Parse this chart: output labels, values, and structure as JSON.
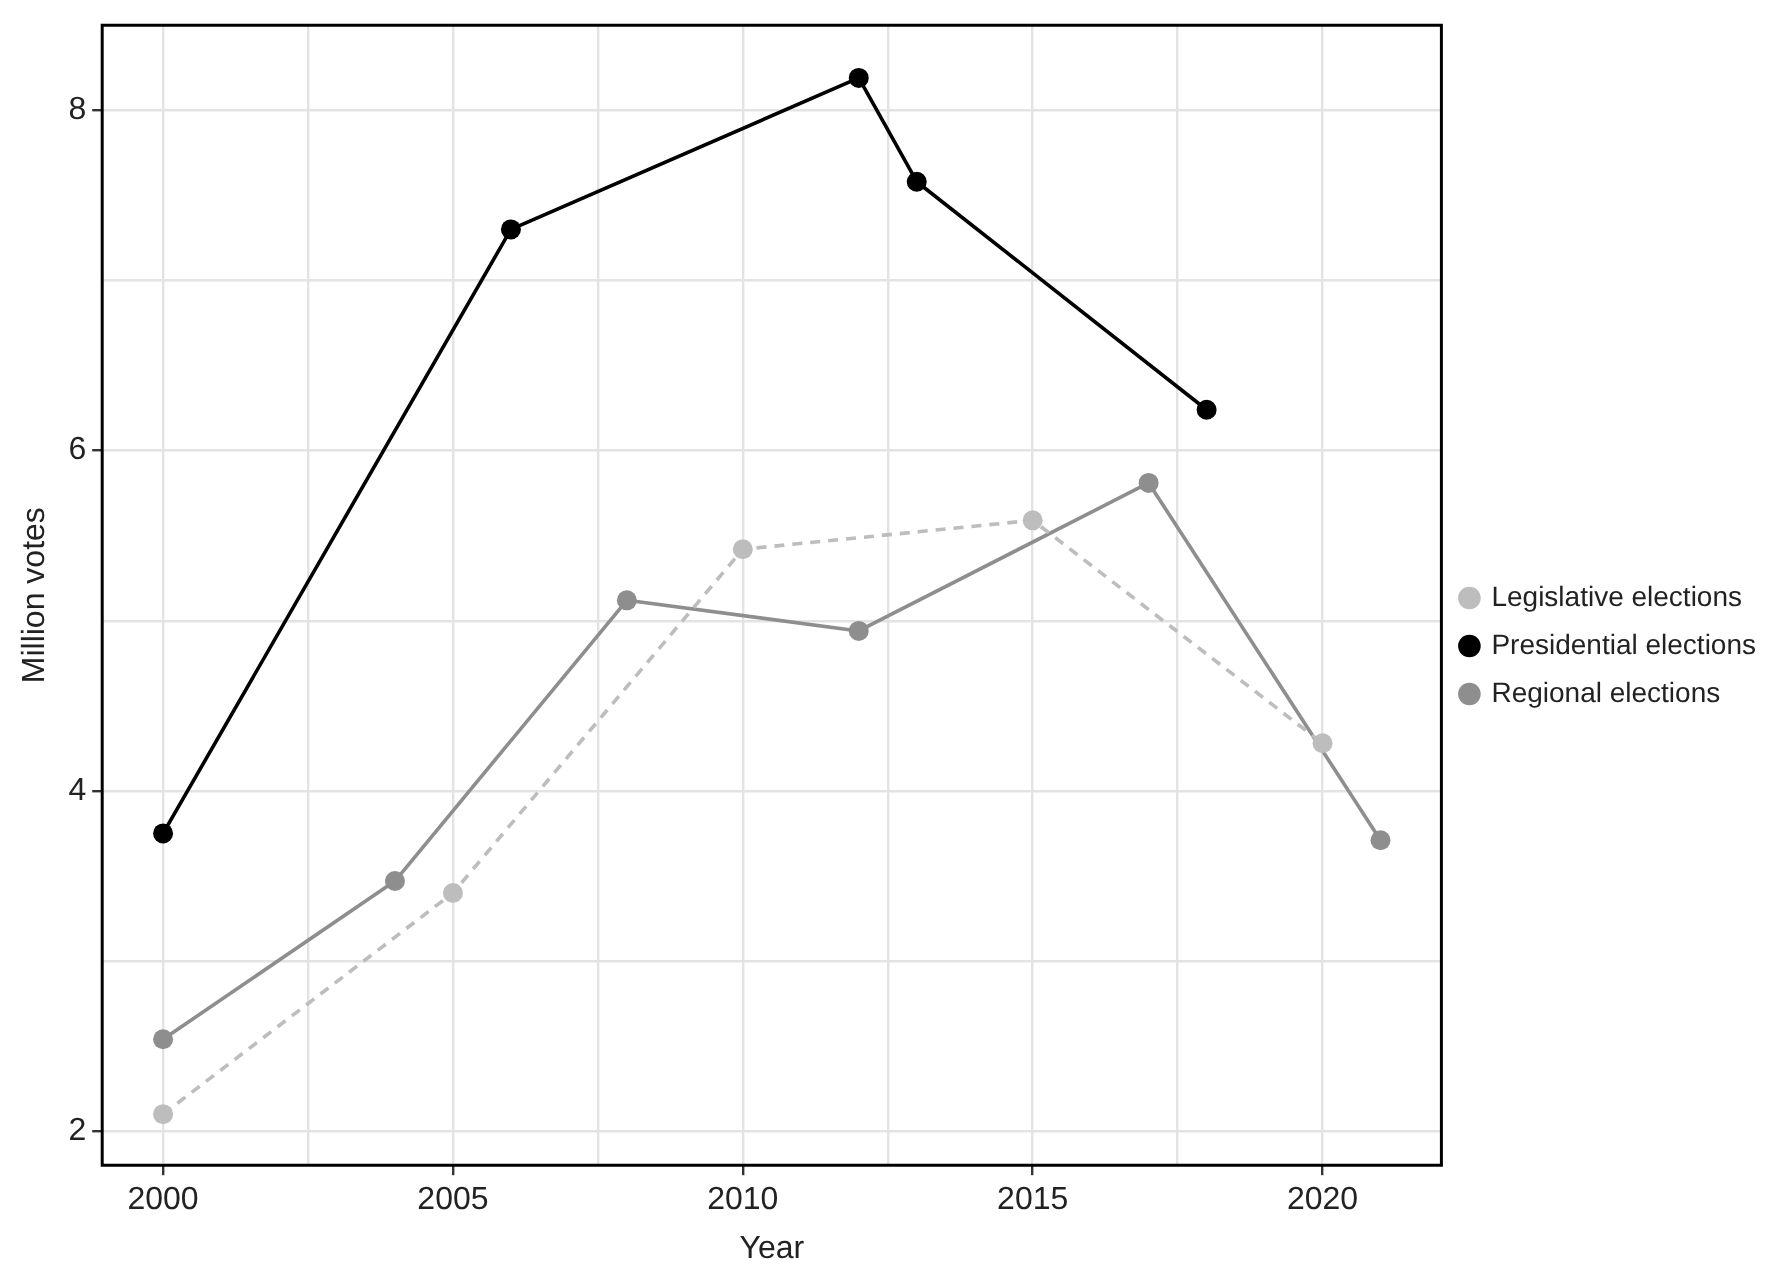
{
  "chart_data": {
    "type": "line",
    "xlabel": "Year",
    "ylabel": "Million votes",
    "xlim": [
      1998.95,
      2022.05
    ],
    "ylim": [
      1.8,
      8.5
    ],
    "xticks": [
      2000,
      {
        "value": 2002.5,
        "label": null
      },
      2005,
      {
        "value": 2007.5,
        "label": null
      },
      2010,
      {
        "value": 2012.5,
        "label": null
      },
      2015,
      {
        "value": 2017.5,
        "label": null
      },
      2020
    ],
    "yticks": [
      2,
      {
        "value": 3,
        "label": null
      },
      4,
      {
        "value": 5,
        "label": null
      },
      6,
      {
        "value": 7,
        "label": null
      },
      8
    ],
    "grid": true,
    "legend": "right",
    "marker": "circle",
    "series": [
      {
        "name": "Legislative elections",
        "color": "#bdbdbd",
        "line_style": "dashed",
        "x": [
          2000,
          2005,
          2010,
          2015,
          2020
        ],
        "values": [
          2.1,
          3.4,
          5.42,
          5.59,
          4.28
        ]
      },
      {
        "name": "Presidential elections",
        "color": "#000000",
        "line_style": "solid",
        "x": [
          2000,
          2006,
          2012,
          2013,
          2018
        ],
        "values": [
          3.75,
          7.3,
          8.19,
          7.58,
          6.24
        ]
      },
      {
        "name": "Regional elections",
        "color": "#8e8e8e",
        "line_style": "solid",
        "x": [
          2000,
          2004,
          2008,
          2012,
          2017,
          2021
        ],
        "values": [
          2.54,
          3.47,
          5.12,
          4.94,
          5.81,
          3.71
        ]
      }
    ]
  }
}
